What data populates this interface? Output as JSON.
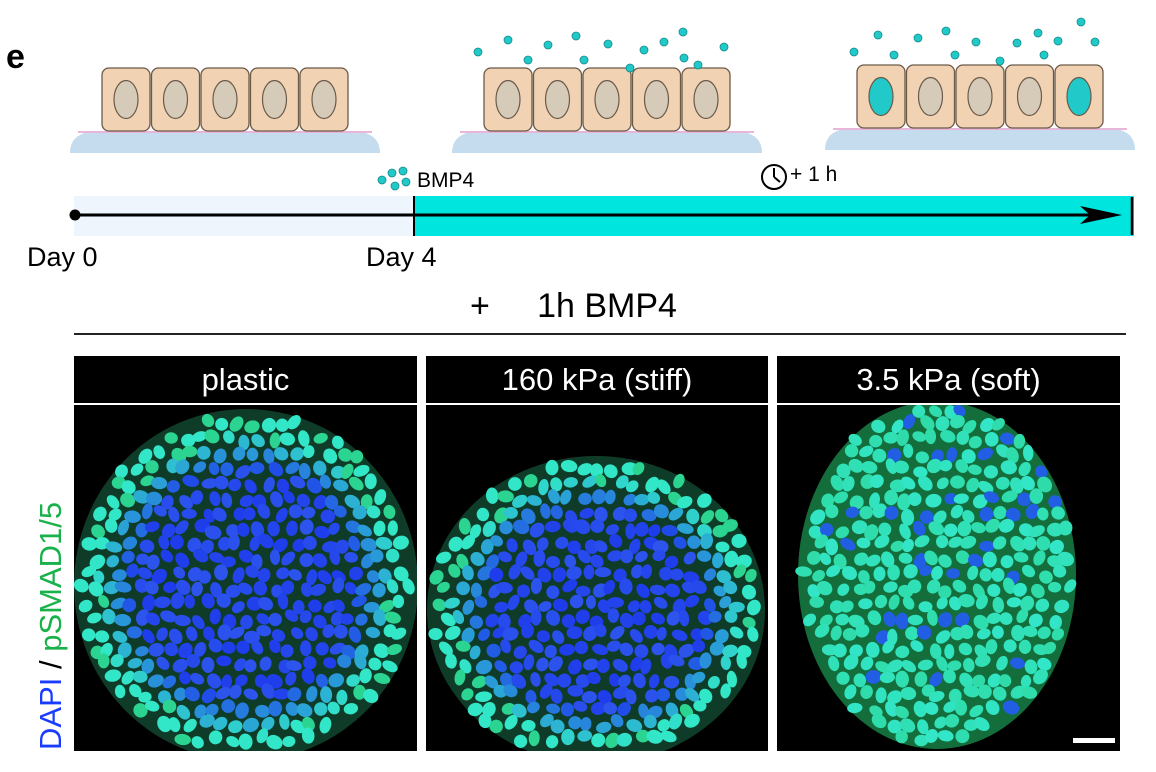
{
  "panel_letter": "e",
  "timeline": {
    "bmp4_label": "BMP4",
    "time_label": "+ 1 h",
    "day_start": "Day 0",
    "day_treatment": "Day 4"
  },
  "treatment_title": "+     1h BMP4",
  "conditions": [
    {
      "label": "plastic"
    },
    {
      "label": "160 kPa (stiff)"
    },
    {
      "label": "3.5 kPa (soft)"
    }
  ],
  "stain_label": {
    "dapi": "DAPI",
    "separator": " / ",
    "psmad": "pSMAD1/5"
  },
  "colors": {
    "cell_fill": "#f1d3b3",
    "cell_stroke": "#6b5a4a",
    "nucleus_fill": "#d6cab8",
    "substrate": "#c4dcee",
    "bmp4": "#22c9c9",
    "timeline_fill": "#00e5dd",
    "dapi_blue": "#1a3cff",
    "psmad_green": "#19b24a",
    "nucleus_teal": "#2ee6c2"
  },
  "icons": [
    "clock-icon",
    "bmp4-dots-icon",
    "scale-bar"
  ]
}
